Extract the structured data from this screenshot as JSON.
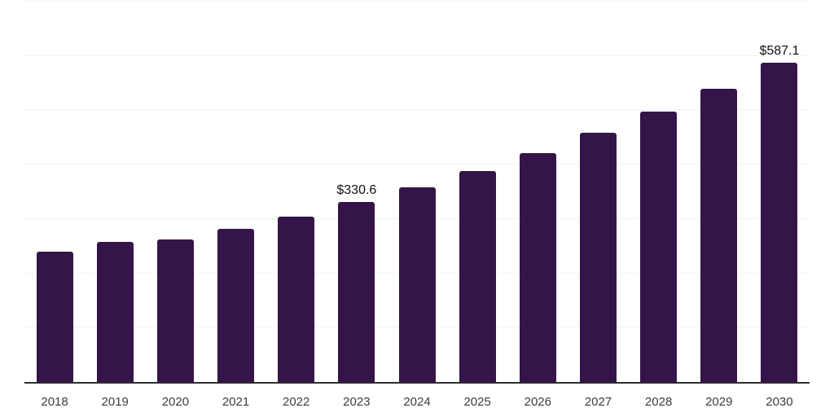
{
  "chart_data": {
    "type": "bar",
    "title": "",
    "xlabel": "",
    "ylabel": "",
    "categories": [
      "2018",
      "2019",
      "2020",
      "2021",
      "2022",
      "2023",
      "2024",
      "2025",
      "2026",
      "2027",
      "2028",
      "2029",
      "2030"
    ],
    "values": [
      240,
      257.5,
      262.5,
      282,
      304.5,
      330.6,
      358,
      388,
      421.5,
      459,
      498,
      540,
      587.1
    ],
    "data_labels": [
      {
        "category": "2023",
        "text": "$330.6"
      },
      {
        "category": "2030",
        "text": "$587.1"
      }
    ],
    "ylim": [
      0,
      700
    ],
    "gridline_step": 100,
    "grid": true,
    "legend": false,
    "y_tick_labels_visible": false
  },
  "style": {
    "bar_color": "#35144a",
    "gridline_color": "#f2f2f2",
    "axis_line_color": "#2e2e2e",
    "tick_label_color": "#3d3d3d",
    "data_label_color": "#111111",
    "background_color": "#ffffff"
  }
}
